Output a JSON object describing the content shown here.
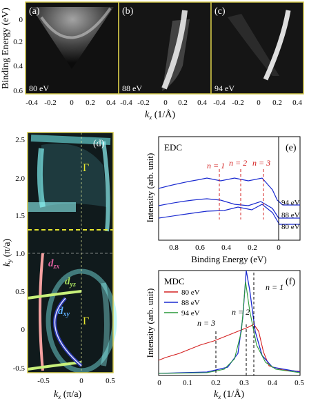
{
  "top_row": {
    "y_axis_label": "Binding Energy (eV)",
    "x_axis_label": "k",
    "x_axis_sub": "x",
    "x_axis_unit": " (1/Å)",
    "y_ticks": [
      "0",
      "0.2",
      "0.4",
      "0.6"
    ],
    "x_ticks": [
      "-0.4",
      "-0.2",
      "0",
      "0.2",
      "0.4"
    ],
    "panels": [
      {
        "letter": "(a)",
        "energy": "80 eV"
      },
      {
        "letter": "(b)",
        "energy": "88 eV"
      },
      {
        "letter": "(c)",
        "energy": "94 eV"
      }
    ]
  },
  "panel_d": {
    "letter": "(d)",
    "y_axis_label": "k",
    "y_axis_sub": "y",
    "y_axis_unit": " (π/a)",
    "x_axis_label": "k",
    "x_axis_sub": "x",
    "x_axis_unit": " (π/a)",
    "y_ticks": [
      "2.5",
      "2.0",
      "1.5",
      "1.0",
      "0.5",
      "0",
      "-0.5"
    ],
    "x_ticks": [
      "-0.5",
      "0",
      "0.5"
    ],
    "gamma_upper": "Γ",
    "gamma_lower": "Γ",
    "orbital_labels": [
      {
        "main": "d",
        "sub": "zx",
        "color": "#e060a0"
      },
      {
        "main": "d",
        "sub": "yz",
        "color": "#a8e060"
      },
      {
        "main": "d",
        "sub": "xy",
        "color": "#60b0ff"
      }
    ]
  },
  "panel_e": {
    "letter": "(e)",
    "title": "EDC",
    "y_axis_label": "Intensity (arb. unit)",
    "x_axis_label": "Binding Energy (eV)",
    "x_ticks": [
      "0.8",
      "0.6",
      "0.4",
      "0.2",
      "0"
    ],
    "peak_labels": [
      "n = 1",
      "n = 2",
      "n = 3"
    ],
    "curve_labels": [
      "94 eV",
      "88 eV",
      "80 eV"
    ]
  },
  "panel_f": {
    "letter": "(f)",
    "title": "MDC",
    "y_axis_label": "Intensity (arb. unit)",
    "x_axis_label": "k",
    "x_axis_sub": "x",
    "x_axis_unit": " (1/Å)",
    "x_ticks": [
      "0",
      "0.1",
      "0.2",
      "0.3",
      "0.4",
      "0.5"
    ],
    "legend": [
      {
        "label": "80 eV",
        "color": "#d42020"
      },
      {
        "label": "88 eV",
        "color": "#1a2ad0"
      },
      {
        "label": "94 eV",
        "color": "#2a9a3a"
      }
    ],
    "peak_labels": [
      "n = 1",
      "n = 2",
      "n = 3"
    ]
  }
}
